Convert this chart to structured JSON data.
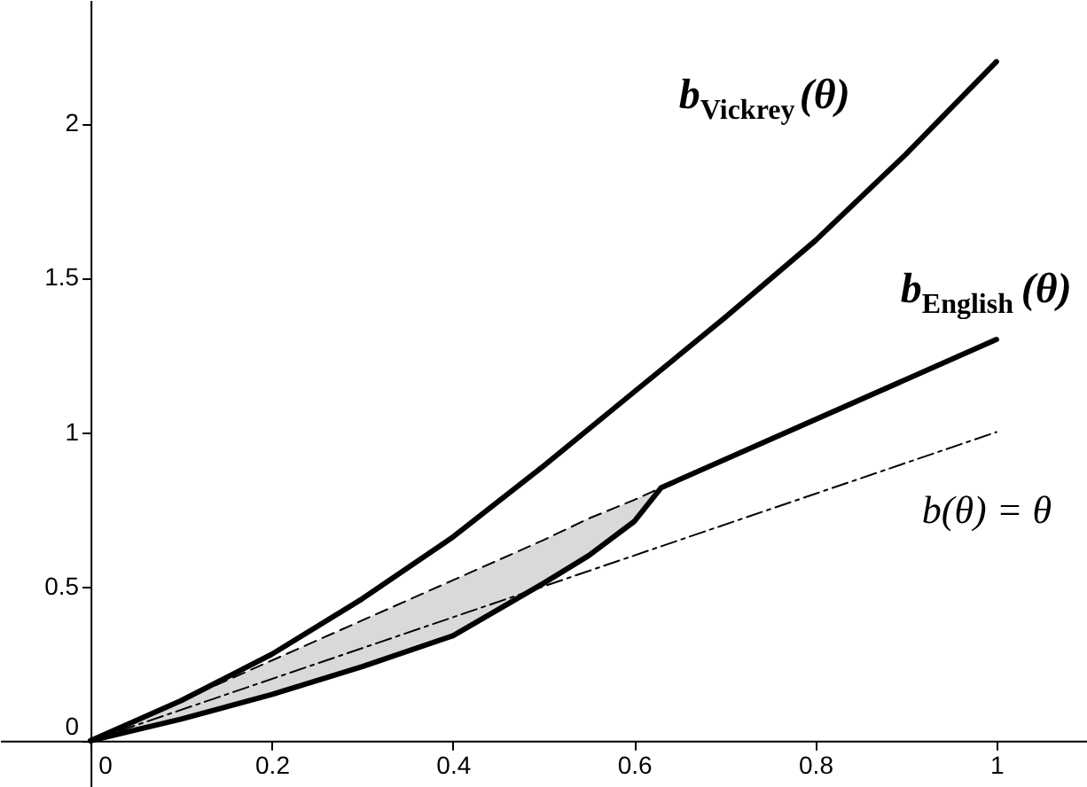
{
  "chart_data": {
    "type": "line",
    "xlim": [
      -0.1,
      1.1
    ],
    "ylim": [
      -0.15,
      2.4
    ],
    "xticks": [
      0,
      0.2,
      0.4,
      0.6,
      0.8,
      1
    ],
    "yticks": [
      0,
      0.5,
      1,
      1.5,
      2
    ],
    "grid": false,
    "series": [
      {
        "name": "b$_{Vickrey}$(θ)",
        "color": "#000000",
        "line_style": "solid",
        "x": [
          0,
          0.1,
          0.2,
          0.3,
          0.4,
          0.5,
          0.6,
          0.7,
          0.8,
          0.9,
          1
        ],
        "values": [
          0,
          0.13,
          0.28,
          0.46,
          0.66,
          0.89,
          1.13,
          1.37,
          1.62,
          1.9,
          2.2
        ]
      },
      {
        "name": "b$_{English}$(θ)",
        "color": "#000000",
        "line_style": "solid",
        "x": [
          0,
          0.1,
          0.2,
          0.3,
          0.4,
          0.5,
          0.55,
          0.6,
          0.63,
          1
        ],
        "values": [
          0,
          0.07,
          0.15,
          0.24,
          0.34,
          0.51,
          0.6,
          0.71,
          0.82,
          1.3
        ]
      },
      {
        "color": "#000000",
        "line_style": "dashed",
        "x": [
          0,
          0.1,
          0.2,
          0.3,
          0.4,
          0.5,
          0.55,
          0.6,
          0.63
        ],
        "values": [
          0,
          0.13,
          0.26,
          0.39,
          0.52,
          0.65,
          0.72,
          0.78,
          0.82
        ],
        "lower": [
          0,
          0.07,
          0.15,
          0.24,
          0.34,
          0.51,
          0.6,
          0.71,
          0.82
        ],
        "upper": [
          0,
          0.13,
          0.26,
          0.39,
          0.52,
          0.65,
          0.72,
          0.78,
          0.82
        ]
      },
      {
        "name": "b(θ) = θ",
        "color": "#000000",
        "line_style": "dashdot",
        "x": [
          0,
          0.25,
          0.5,
          0.75,
          1
        ],
        "values": [
          0,
          0.25,
          0.5,
          0.75,
          1
        ]
      }
    ]
  }
}
